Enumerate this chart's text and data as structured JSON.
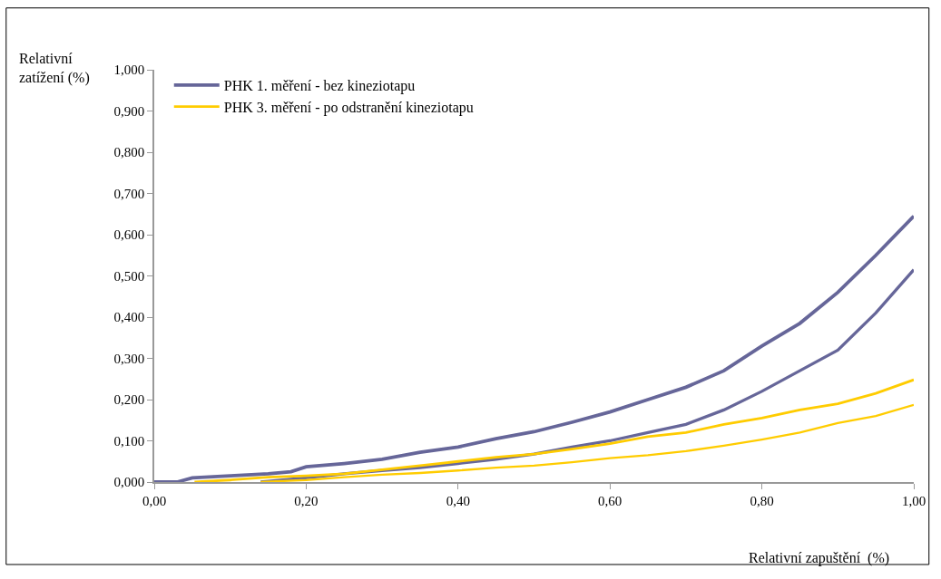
{
  "chart_data": {
    "type": "line",
    "xlabel": "Relativní zapuštění  (%)",
    "ylabel": "Relativní zatížení (%)",
    "series": [
      {
        "name": "PHK 1. měření - bez kineziotapu",
        "color": "#666699",
        "x": [
          0,
          0.03,
          0.05,
          0.1,
          0.15,
          0.18,
          0.2,
          0.25,
          0.3,
          0.35,
          0.4,
          0.45,
          0.5,
          0.55,
          0.6,
          0.65,
          0.7,
          0.75,
          0.8,
          0.85,
          0.9,
          0.95,
          1.0
        ],
        "values": [
          0,
          0,
          0.01,
          0.015,
          0.02,
          0.025,
          0.037,
          0.045,
          0.055,
          0.072,
          0.085,
          0.105,
          0.122,
          0.145,
          0.17,
          0.2,
          0.23,
          0.27,
          0.33,
          0.385,
          0.46,
          0.55,
          0.645
        ]
      },
      {
        "color": "#666699",
        "x": [
          0.14,
          0.2,
          0.25,
          0.3,
          0.35,
          0.4,
          0.45,
          0.5,
          0.55,
          0.6,
          0.65,
          0.7,
          0.75,
          0.8,
          0.85,
          0.9,
          0.95,
          1.0
        ],
        "values": [
          0,
          0.01,
          0.02,
          0.028,
          0.035,
          0.045,
          0.055,
          0.068,
          0.085,
          0.1,
          0.12,
          0.14,
          0.175,
          0.22,
          0.27,
          0.32,
          0.41,
          0.515
        ]
      },
      {
        "name": "PHK 3. měření - po odstranění kineziotapu",
        "color": "#ffcc00",
        "x": [
          0.053,
          0.1,
          0.15,
          0.2,
          0.25,
          0.3,
          0.35,
          0.4,
          0.45,
          0.5,
          0.55,
          0.6,
          0.65,
          0.7,
          0.75,
          0.8,
          0.85,
          0.9,
          0.95,
          1.0
        ],
        "values": [
          0,
          0.005,
          0.012,
          0.015,
          0.02,
          0.03,
          0.04,
          0.05,
          0.06,
          0.068,
          0.08,
          0.093,
          0.11,
          0.12,
          0.14,
          0.155,
          0.175,
          0.19,
          0.215,
          0.248
        ]
      },
      {
        "color": "#ffcc00",
        "x": [
          0.14,
          0.2,
          0.25,
          0.3,
          0.35,
          0.4,
          0.45,
          0.5,
          0.55,
          0.6,
          0.65,
          0.7,
          0.75,
          0.8,
          0.85,
          0.9,
          0.95,
          1.0
        ],
        "values": [
          0,
          0.005,
          0.012,
          0.018,
          0.022,
          0.028,
          0.035,
          0.04,
          0.048,
          0.058,
          0.065,
          0.075,
          0.088,
          0.103,
          0.12,
          0.143,
          0.16,
          0.187
        ]
      }
    ],
    "xlim": [
      0,
      1
    ],
    "xticks": [
      {
        "value": 0,
        "label": "0,00"
      },
      {
        "value": 0.2,
        "label": "0,20"
      },
      {
        "value": 0.4,
        "label": "0,40"
      },
      {
        "value": 0.6,
        "label": "0,60"
      },
      {
        "value": 0.8,
        "label": "0,80"
      },
      {
        "value": 1,
        "label": "1,00"
      }
    ],
    "ylim": [
      0,
      1
    ],
    "yticks": [
      {
        "value": 0,
        "label": "0,000"
      },
      {
        "value": 0.1,
        "label": "0,100"
      },
      {
        "value": 0.2,
        "label": "0,200"
      },
      {
        "value": 0.3,
        "label": "0,300"
      },
      {
        "value": 0.4,
        "label": "0,400"
      },
      {
        "value": 0.5,
        "label": "0,500"
      },
      {
        "value": 0.6,
        "label": "0,600"
      },
      {
        "value": 0.7,
        "label": "0,700"
      },
      {
        "value": 0.8,
        "label": "0,800"
      },
      {
        "value": 0.9,
        "label": "0,900"
      },
      {
        "value": 1,
        "label": "1,000"
      }
    ],
    "grid": false,
    "legend": "top left",
    "marker": "none",
    "line_style": "solid"
  }
}
